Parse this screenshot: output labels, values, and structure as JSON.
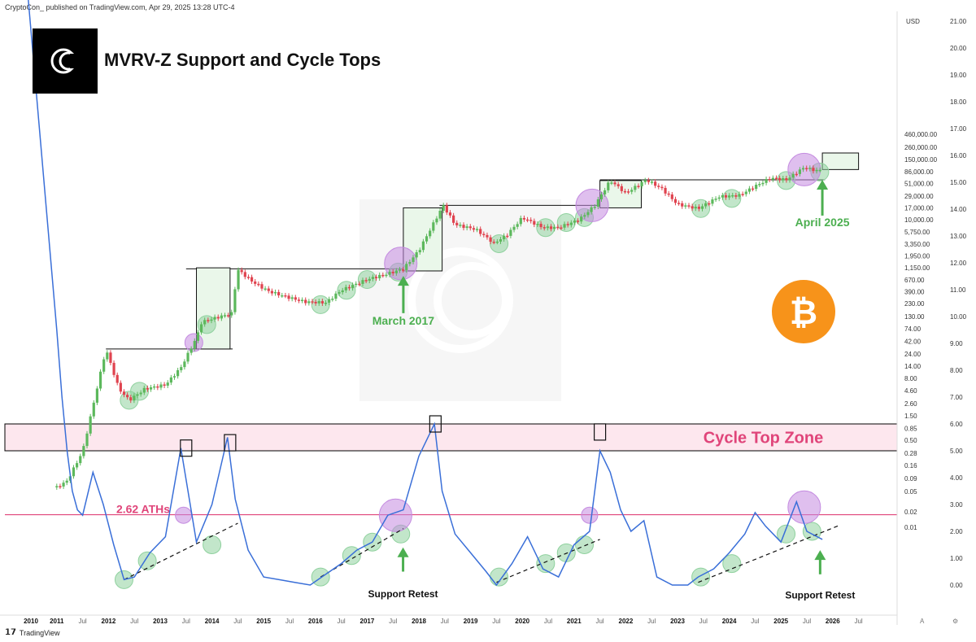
{
  "header": {
    "publisher_line": "CryptoCon_ published on TradingView.com, Apr 29, 2025 13:28 UTC-4"
  },
  "footer": {
    "brand": "TradingView"
  },
  "colors": {
    "up": "#5cb85c",
    "down": "#e0434f",
    "mvrv_line": "#3a6fd8",
    "cycle_zone": "#fde7ee",
    "ath_line": "#e0457a",
    "green_circle": "#8fd19e",
    "purple_circle": "#c48be0",
    "arrow": "#4caf50",
    "btc_orange": "#f7931a"
  },
  "chart_data": {
    "type": "line",
    "title": "MVRV-Z Support and Cycle Tops",
    "currency_label": "USD",
    "price_axis_ticks": [
      "460,000.00",
      "260,000.00",
      "150,000.00",
      "86,000.00",
      "51,000.00",
      "29,000.00",
      "17,000.00",
      "10,000.00",
      "5,750.00",
      "3,350.00",
      "1,950.00",
      "1,150.00",
      "670.00",
      "390.00",
      "230.00",
      "130.00",
      "74.00",
      "42.00",
      "24.00",
      "14.00",
      "8.00",
      "4.60",
      "2.60",
      "1.50",
      "0.85",
      "0.50",
      "0.28",
      "0.16",
      "0.09",
      "0.05",
      "0.02",
      "0.01"
    ],
    "mvrv_axis_ticks": [
      "21.00",
      "20.00",
      "19.00",
      "18.00",
      "17.00",
      "16.00",
      "15.00",
      "14.00",
      "13.00",
      "12.00",
      "11.00",
      "10.00",
      "9.00",
      "8.00",
      "7.00",
      "6.00",
      "5.00",
      "4.00",
      "3.00",
      "2.00",
      "1.00",
      "0.00"
    ],
    "time_axis_ticks": [
      "2010",
      "2011",
      "Jul",
      "2012",
      "Jul",
      "2013",
      "Jul",
      "2014",
      "Jul",
      "2015",
      "Jul",
      "2016",
      "Jul",
      "2017",
      "Jul",
      "2018",
      "Jul",
      "2019",
      "Jul",
      "2020",
      "Jul",
      "2021",
      "Jul",
      "2022",
      "Jul",
      "2023",
      "Jul",
      "2024",
      "Jul",
      "2025",
      "Jul",
      "2026",
      "Jul"
    ],
    "mvrv_z": {
      "x": [
        2010.5,
        2010.6,
        2010.7,
        2010.8,
        2010.9,
        2011.0,
        2011.2,
        2011.4,
        2011.6,
        2011.8,
        2012.0,
        2012.3,
        2012.6,
        2012.9,
        2013.2,
        2013.5,
        2013.8,
        2013.95,
        2014.2,
        2014.5,
        2014.8,
        2015.1,
        2015.4,
        2015.7,
        2016.0,
        2016.3,
        2016.6,
        2016.9,
        2017.2,
        2017.5,
        2017.8,
        2017.95,
        2018.2,
        2018.5,
        2018.8,
        2019.0,
        2019.3,
        2019.6,
        2019.9,
        2020.2,
        2020.5,
        2020.8,
        2021.0,
        2021.2,
        2021.4,
        2021.6,
        2021.85,
        2022.1,
        2022.4,
        2022.7,
        2022.9,
        2023.2,
        2023.5,
        2023.8,
        2024.0,
        2024.2,
        2024.5,
        2024.8,
        2025.0,
        2025.3
      ],
      "y": [
        9.5,
        7.0,
        5.0,
        3.5,
        2.8,
        2.6,
        4.2,
        3.0,
        1.5,
        0.2,
        0.3,
        1.2,
        1.8,
        5.1,
        1.6,
        3.0,
        5.5,
        3.2,
        1.3,
        0.3,
        0.2,
        0.1,
        0.0,
        0.4,
        0.8,
        1.3,
        1.6,
        2.6,
        2.8,
        4.8,
        6.0,
        3.5,
        1.9,
        1.2,
        0.5,
        0.0,
        0.8,
        1.8,
        0.6,
        0.3,
        1.5,
        2.0,
        5.0,
        4.2,
        2.8,
        2.0,
        2.4,
        0.3,
        0.0,
        0.0,
        0.3,
        0.6,
        1.2,
        1.9,
        2.7,
        2.2,
        1.6,
        3.1,
        2.0,
        1.7
      ],
      "cycle_top_zone": [
        5.0,
        6.0
      ],
      "ath_level": 2.62,
      "ath_label": "2.62 ATHs",
      "cycle_top_label": "Cycle Top Zone"
    },
    "price_series": {
      "x": [
        2010.5,
        2010.7,
        2011.0,
        2011.45,
        2011.7,
        2011.9,
        2012.2,
        2012.6,
        2012.9,
        2013.2,
        2013.3,
        2013.55,
        2013.9,
        2013.98,
        2014.3,
        2014.6,
        2015.0,
        2015.3,
        2015.7,
        2016.0,
        2016.5,
        2017.0,
        2017.2,
        2017.5,
        2017.97,
        2018.2,
        2018.6,
        2018.95,
        2019.2,
        2019.5,
        2019.9,
        2020.2,
        2020.6,
        2020.9,
        2021.2,
        2021.5,
        2021.9,
        2022.2,
        2022.5,
        2022.9,
        2023.3,
        2023.7,
        2024.0,
        2024.3,
        2024.6,
        2024.95,
        2025.1,
        2025.3
      ],
      "y": [
        0.06,
        0.08,
        0.3,
        30,
        5,
        3,
        5,
        6,
        13,
        50,
        100,
        120,
        150,
        1100,
        600,
        400,
        300,
        250,
        240,
        420,
        680,
        950,
        1100,
        2500,
        19000,
        8000,
        6500,
        3500,
        5000,
        11000,
        7000,
        7000,
        10000,
        19000,
        58000,
        33000,
        60000,
        40000,
        20000,
        16500,
        28000,
        30000,
        45000,
        65000,
        60000,
        105000,
        94000,
        90000
      ]
    },
    "annotations": [
      {
        "text": "March 2017",
        "x": 2017.2
      },
      {
        "text": "April 2025",
        "x": 2025.3
      },
      {
        "text": "Support Retest",
        "x": 2017.1
      },
      {
        "text": "Support Retest",
        "x": 2025.1
      }
    ],
    "green_support_points_price": [
      [
        2011.9,
        3
      ],
      [
        2012.1,
        4.5
      ],
      [
        2013.4,
        90
      ],
      [
        2015.6,
        220
      ],
      [
        2016.1,
        420
      ],
      [
        2016.5,
        680
      ],
      [
        2017.1,
        950
      ],
      [
        2019.05,
        3400
      ],
      [
        2019.95,
        7000
      ],
      [
        2020.35,
        8800
      ],
      [
        2020.7,
        11000
      ],
      [
        2022.95,
        16500
      ],
      [
        2023.55,
        26000
      ],
      [
        2024.6,
        58000
      ],
      [
        2025.25,
        85000
      ]
    ],
    "purple_top_points_price": [
      [
        2013.15,
        40
      ],
      [
        2017.15,
        1400
      ],
      [
        2020.85,
        19000
      ],
      [
        2024.95,
        95000
      ]
    ],
    "green_support_points_mvrv": [
      [
        2011.8,
        0.2
      ],
      [
        2012.25,
        0.9
      ],
      [
        2013.5,
        1.5
      ],
      [
        2015.6,
        0.3
      ],
      [
        2016.2,
        1.1
      ],
      [
        2016.6,
        1.6
      ],
      [
        2017.15,
        1.9
      ],
      [
        2019.05,
        0.3
      ],
      [
        2019.95,
        0.8
      ],
      [
        2020.35,
        1.2
      ],
      [
        2020.7,
        1.5
      ],
      [
        2022.95,
        0.3
      ],
      [
        2023.55,
        0.8
      ],
      [
        2024.6,
        1.9
      ],
      [
        2025.1,
        2.0
      ]
    ],
    "purple_top_points_mvrv": [
      [
        2012.95,
        2.6
      ],
      [
        2017.05,
        2.6
      ],
      [
        2020.8,
        2.6
      ],
      [
        2024.95,
        2.9
      ]
    ],
    "support_trendlines_mvrv": [
      [
        [
          2011.8,
          0.2
        ],
        [
          2014.0,
          2.3
        ]
      ],
      [
        [
          2015.6,
          0.3
        ],
        [
          2017.2,
          2.1
        ]
      ],
      [
        [
          2019.0,
          0.1
        ],
        [
          2021.0,
          1.7
        ]
      ],
      [
        [
          2022.9,
          0.1
        ],
        [
          2025.6,
          2.2
        ]
      ]
    ],
    "cycle_top_markers_mvrv": [
      [
        2013.0,
        5.1
      ],
      [
        2013.85,
        5.3
      ],
      [
        2017.82,
        6.0
      ],
      [
        2021.0,
        5.7
      ]
    ],
    "grid": false,
    "log_scale_price": true,
    "logo_text": "C",
    "bitcoin_symbol": "₿"
  }
}
